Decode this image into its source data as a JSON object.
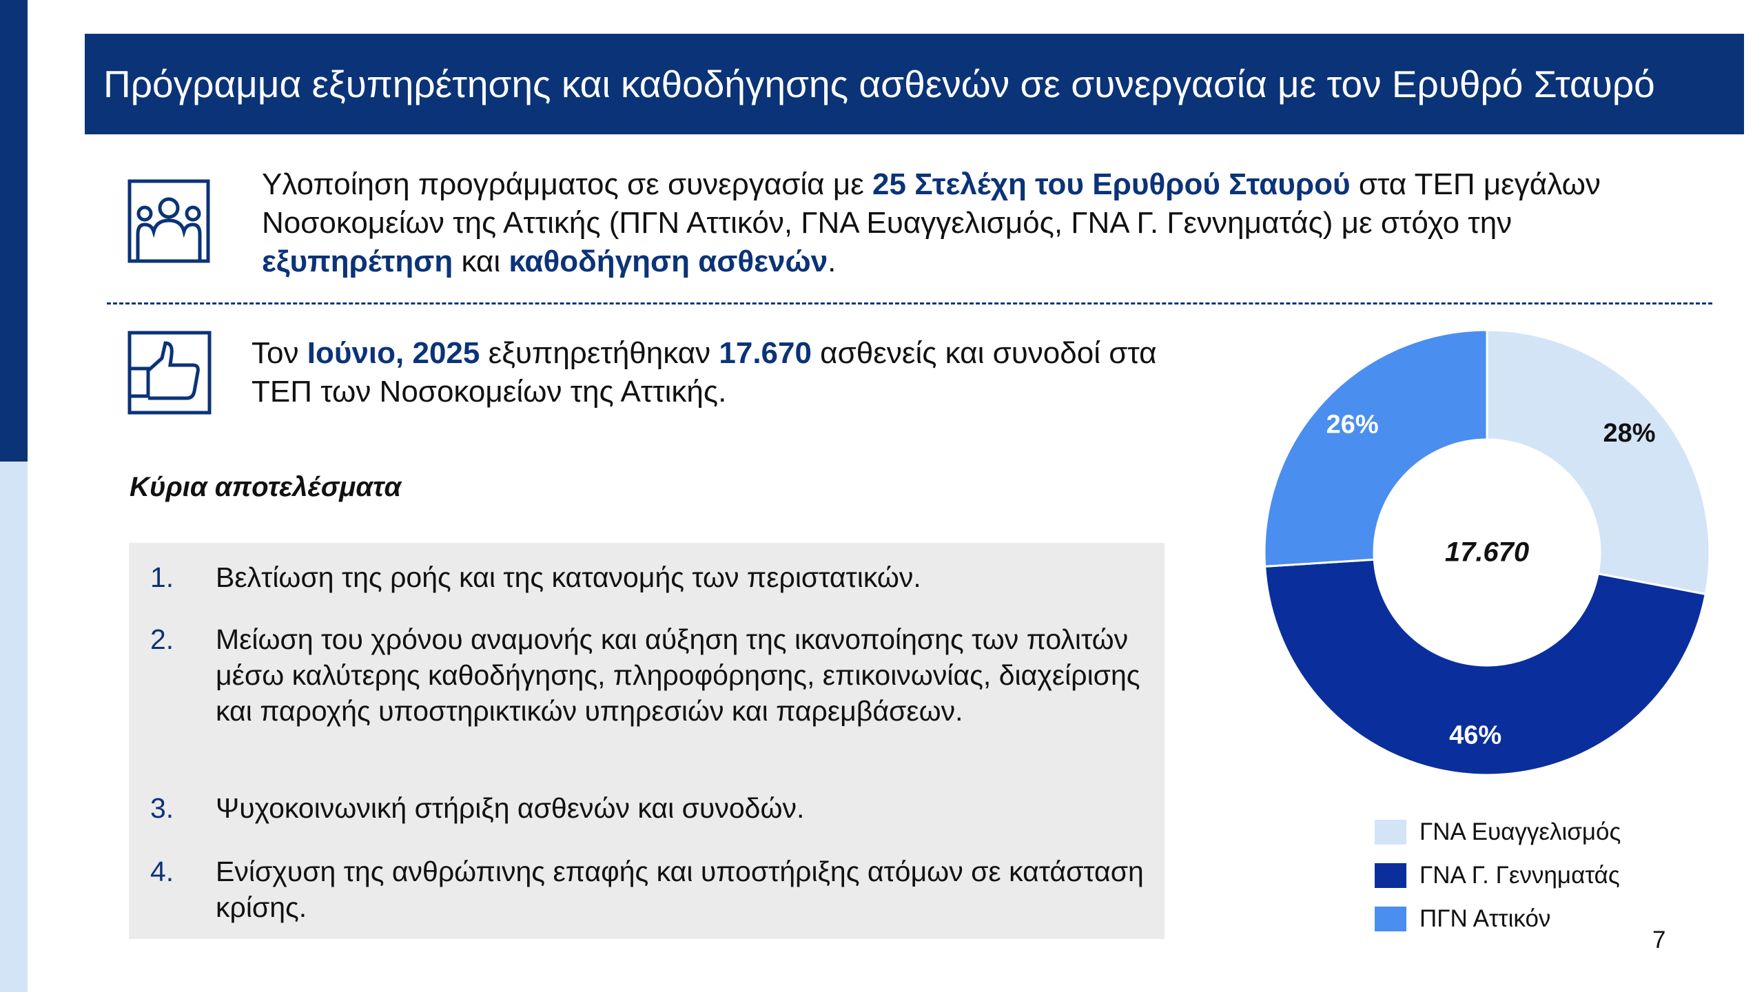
{
  "header": {
    "title": "Πρόγραμμα εξυπηρέτησης και καθοδήγησης ασθενών σε συνεργασία με τον Ερυθρό Σταυρό"
  },
  "intro": [
    "Υλοποίηση προγράμματος σε συνεργασία με ",
    "25 Στελέχη του Ερυθρού Σταυρού",
    " στα ΤΕΠ μεγάλων Νοσοκομείων της Αττικής (ΠΓΝ Αττικόν, ΓΝΑ Ευαγγελισμός, ΓΝΑ Γ. Γεννηματάς) με στόχο την ",
    "εξυπηρέτηση",
    " και ",
    "καθοδήγηση ασθενών",
    "."
  ],
  "statement": [
    "Τον ",
    "Ιούνιο, 2025",
    " εξυπηρετήθηκαν ",
    "17.670",
    " ασθενείς και συνοδοί στα ΤΕΠ των Νοσοκομείων της Αττικής."
  ],
  "results": {
    "title": "Κύρια αποτελέσματα",
    "items": [
      {
        "number": "1.",
        "text": "Βελτίωση της ροής και της κατανομής των περιστατικών."
      },
      {
        "number": "2.",
        "text": "Μείωση του χρόνου αναμονής και αύξηση της ικανοποίησης των πολιτών μέσω καλύτερης καθοδήγησης, πληροφόρησης, επικοινωνίας, διαχείρισης και παροχής υποστηρικτικών υπηρεσιών και παρεμβάσεων."
      },
      {
        "number": "3.",
        "text": "Ψυχοκοινωνική στήριξη ασθενών και συνοδών."
      },
      {
        "number": "4.",
        "text": "Ενίσχυση της ανθρώπινης επαφής και υποστήριξης ατόμων σε κατάσταση κρίσης."
      }
    ]
  },
  "chart_data": {
    "type": "donut",
    "center_label": "17.670",
    "categories": [
      "ΓΝΑ Ευαγγελισμός",
      "ΓΝΑ Γ. Γεννηματάς",
      "ΠΓΝ Αττικόν"
    ],
    "values": [
      28,
      46,
      26
    ],
    "value_labels": [
      "28%",
      "46%",
      "26%"
    ],
    "colors": [
      "#d4e4f7",
      "#0a2f9c",
      "#4a8ef0"
    ]
  },
  "page_number": "7"
}
